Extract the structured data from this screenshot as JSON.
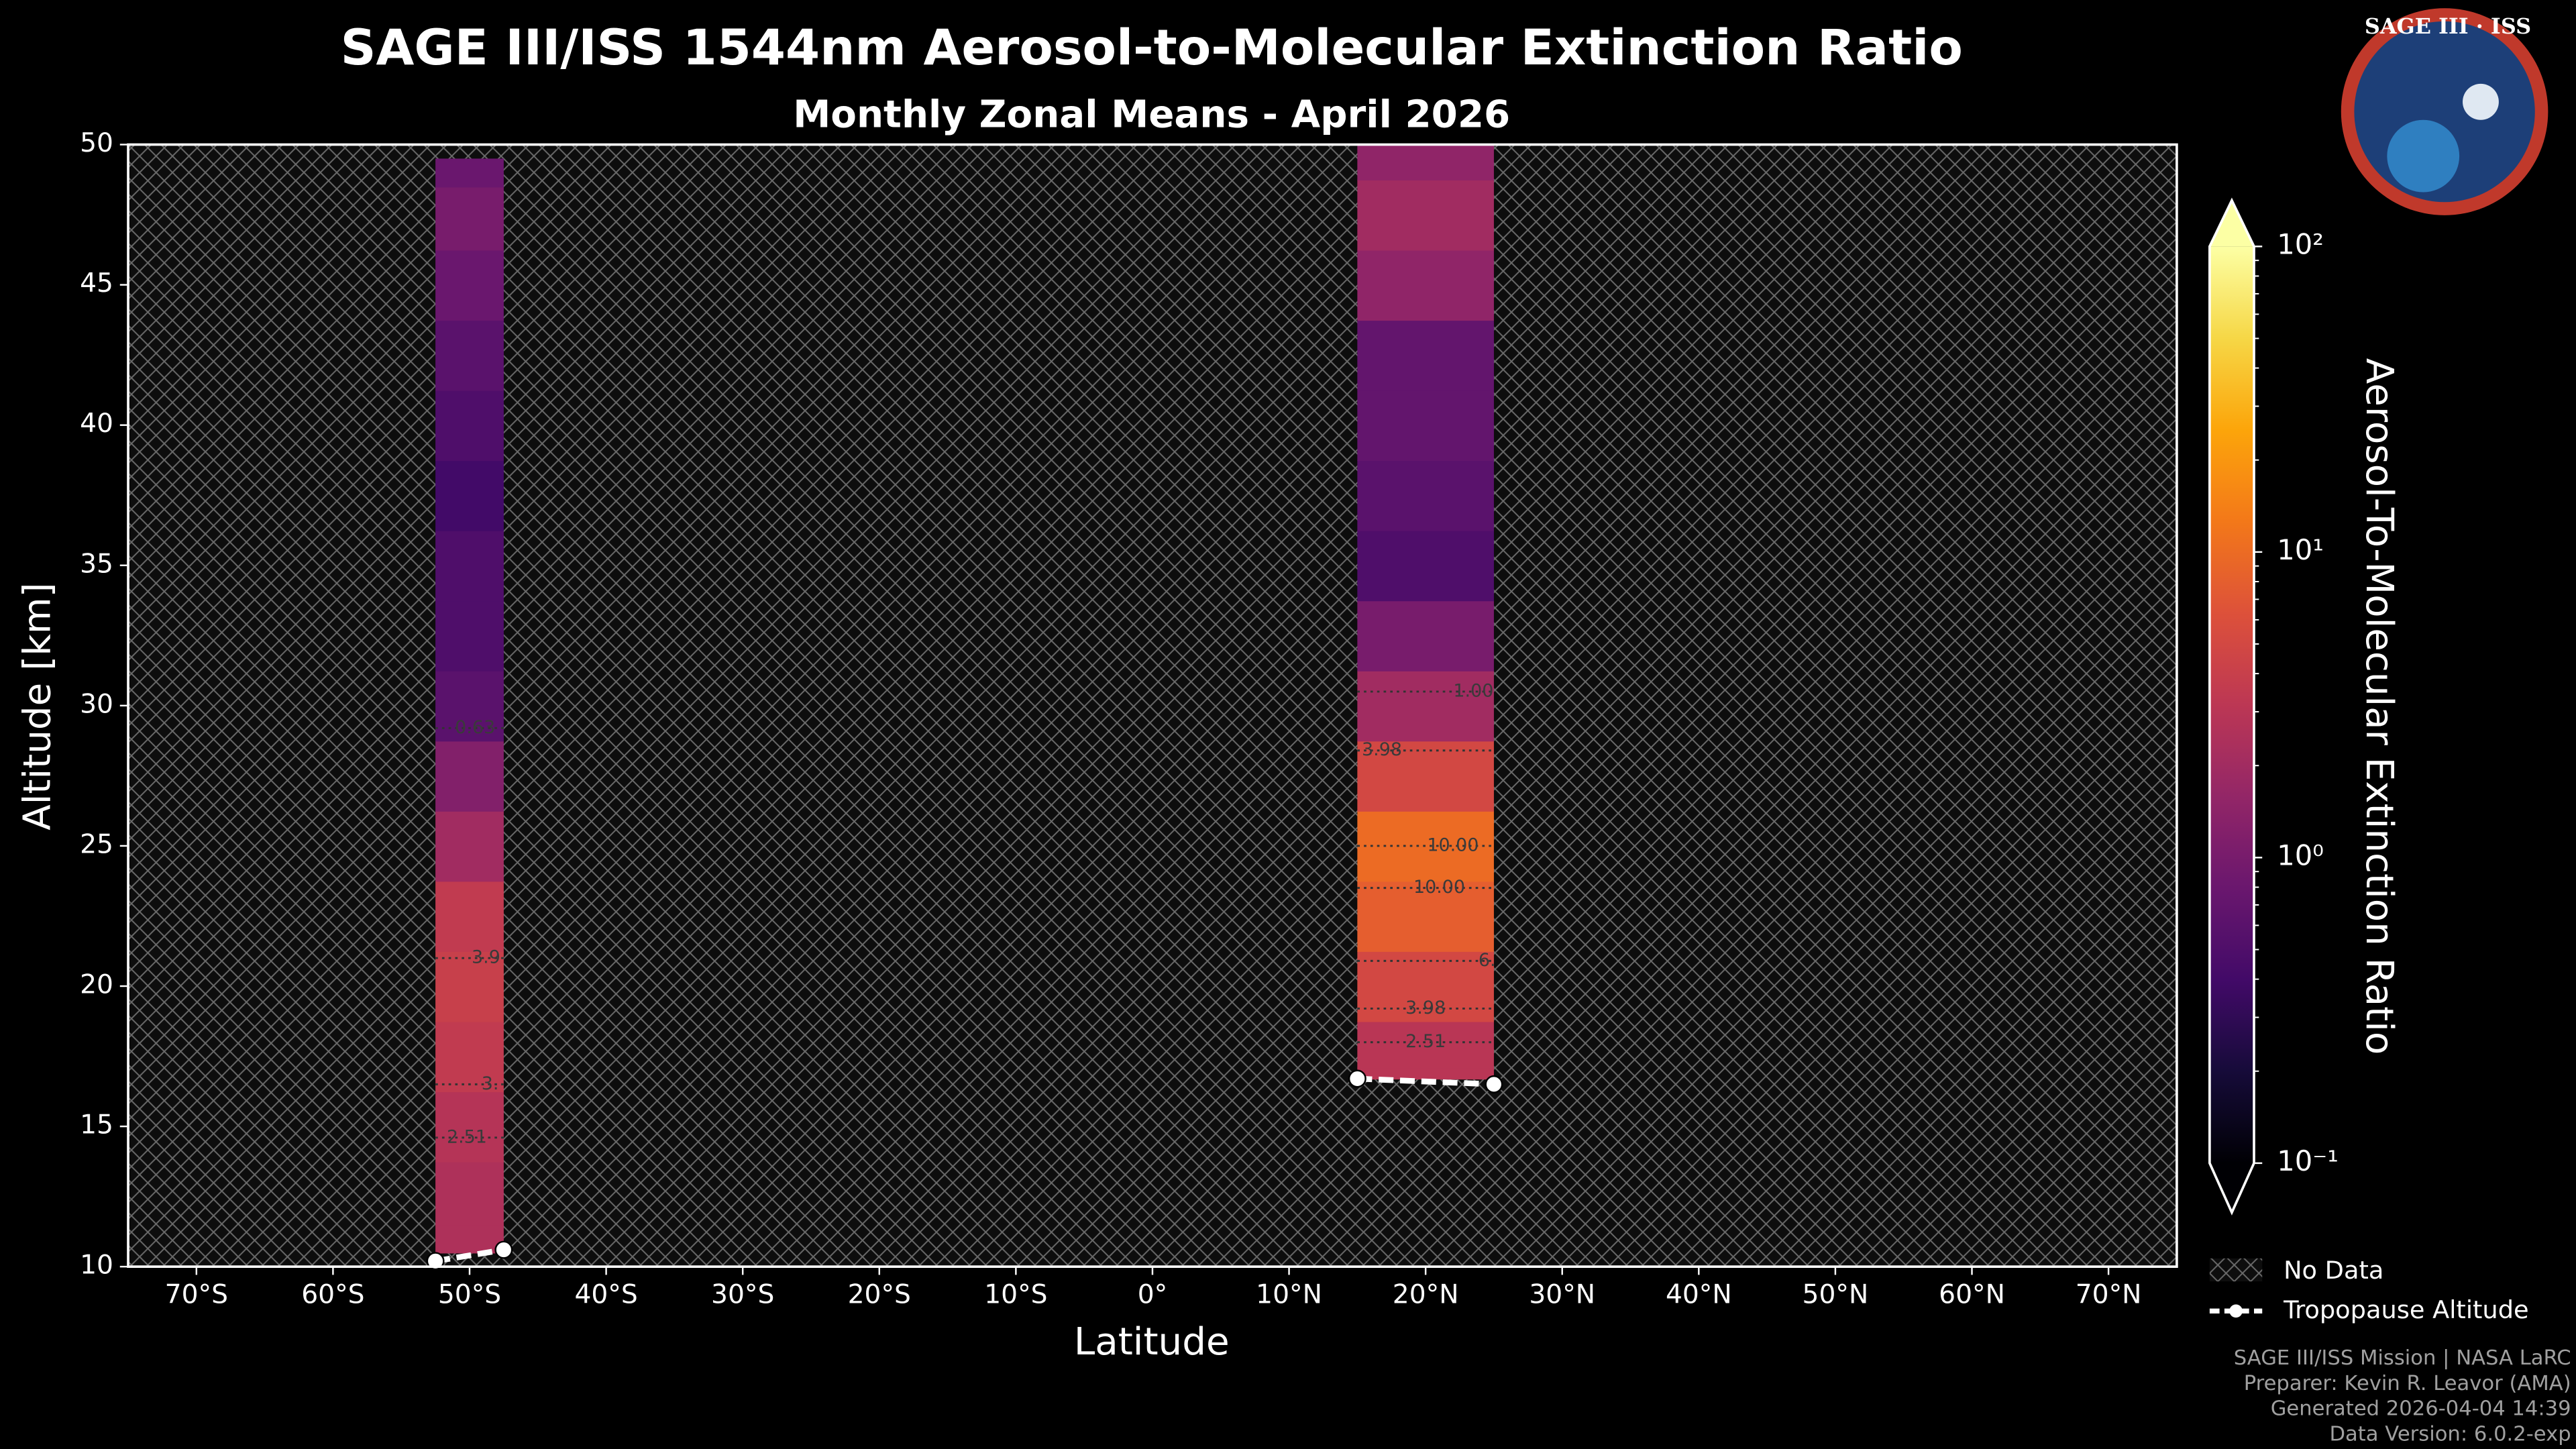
{
  "chart_data": {
    "type": "zonal-heatmap",
    "title": "SAGE III/ISS 1544nm Aerosol-to-Molecular Extinction Ratio",
    "subtitle": "Monthly Zonal Means - April 2026",
    "x_label": "Latitude",
    "y_label": "Altitude [km]",
    "colorbar_label": "Aerosol-To-Molecular Extinction Ratio",
    "colormap": "inferno",
    "color_log": true,
    "xlim": [
      -75,
      75
    ],
    "xticks": [
      {
        "value": -70,
        "label": "70°S"
      },
      {
        "value": -60,
        "label": "60°S"
      },
      {
        "value": -50,
        "label": "50°S"
      },
      {
        "value": -40,
        "label": "40°S"
      },
      {
        "value": -30,
        "label": "30°S"
      },
      {
        "value": -20,
        "label": "20°S"
      },
      {
        "value": -10,
        "label": "10°S"
      },
      {
        "value": 0,
        "label": "0°"
      },
      {
        "value": 10,
        "label": "10°N"
      },
      {
        "value": 20,
        "label": "20°N"
      },
      {
        "value": 30,
        "label": "30°N"
      },
      {
        "value": 40,
        "label": "40°N"
      },
      {
        "value": 50,
        "label": "50°N"
      },
      {
        "value": 60,
        "label": "60°N"
      },
      {
        "value": 70,
        "label": "70°N"
      }
    ],
    "ylim": [
      10,
      50
    ],
    "yticks": [
      10,
      15,
      20,
      25,
      30,
      35,
      40,
      45,
      50
    ],
    "clim": [
      0.1,
      100
    ],
    "cticks": [
      {
        "value": 0.1,
        "label": "10⁻¹"
      },
      {
        "value": 1,
        "label": "10⁰"
      },
      {
        "value": 10,
        "label": "10¹"
      },
      {
        "value": 100,
        "label": "10²"
      }
    ],
    "columns": [
      {
        "lat_range": [
          -52.5,
          -47.5
        ],
        "altitudes": [
          10.5,
          12.5,
          15,
          17.5,
          20,
          22.5,
          25,
          27.5,
          30,
          32.5,
          35,
          37.5,
          40,
          42.5,
          45,
          47.5,
          49.5
        ],
        "values": [
          2.5,
          2.5,
          2.8,
          3.5,
          4,
          3.5,
          2,
          1.2,
          0.6,
          0.5,
          0.5,
          0.4,
          0.5,
          0.6,
          0.8,
          1,
          0.8
        ]
      },
      {
        "lat_range": [
          15,
          25
        ],
        "altitudes": [
          16.7,
          17.5,
          20,
          22.5,
          25,
          27.5,
          30,
          32.5,
          35,
          37.5,
          40,
          42.5,
          45,
          47.5,
          50
        ],
        "values": [
          3,
          3,
          5,
          8,
          10,
          5,
          2,
          1,
          0.5,
          0.6,
          0.7,
          0.7,
          1.5,
          2,
          1.5
        ]
      }
    ],
    "contour_labels": [
      {
        "text": "0.63",
        "lat": -49.6,
        "alt": 29.2
      },
      {
        "text": "3.9",
        "lat": -48.8,
        "alt": 21
      },
      {
        "text": "3.",
        "lat": -48.5,
        "alt": 16.5
      },
      {
        "text": "2.51",
        "lat": -50.2,
        "alt": 14.6
      },
      {
        "text": "1.00",
        "lat": 23.5,
        "alt": 30.5
      },
      {
        "text": "3.98",
        "lat": 16.8,
        "alt": 28.4
      },
      {
        "text": "10.00",
        "lat": 22,
        "alt": 25
      },
      {
        "text": "10.00",
        "lat": 21,
        "alt": 23.5
      },
      {
        "text": "6.",
        "lat": 24.5,
        "alt": 20.9
      },
      {
        "text": "3.98",
        "lat": 20,
        "alt": 19.2
      },
      {
        "text": "2.51",
        "lat": 20,
        "alt": 18
      }
    ],
    "tropopause": {
      "name": "Tropopause Altitude",
      "color": "#ffffff",
      "pieces": [
        {
          "lat": [
            -52.5,
            -47.5
          ],
          "alt": [
            10.2,
            10.6
          ]
        },
        {
          "lat": [
            15,
            25
          ],
          "alt": [
            16.7,
            16.5
          ]
        }
      ]
    },
    "no_data_label": "No Data",
    "logo_text": "SAGE III · ISS",
    "footer": [
      "SAGE III/ISS Mission | NASA LaRC",
      "Preparer: Kevin R. Leavor (AMA)",
      "Generated 2026-04-04 14:39",
      "Data Version: 6.0.2-exp"
    ]
  }
}
